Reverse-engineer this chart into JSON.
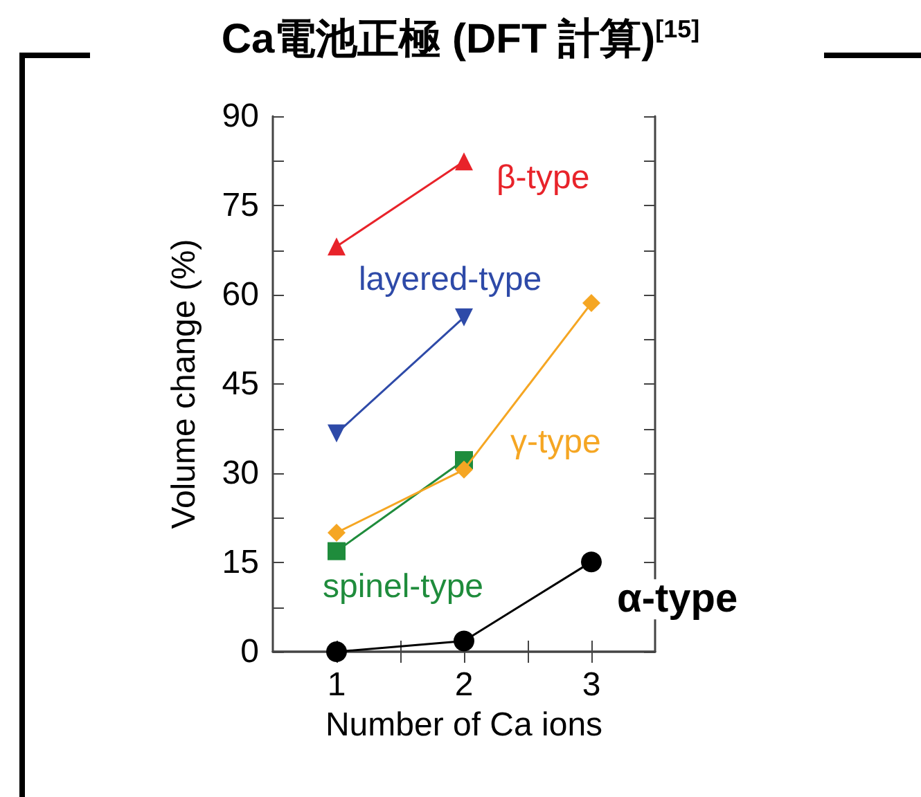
{
  "chart_data": {
    "type": "line",
    "title": "Ca電池正極 (DFT 計算)$^{[15]}$",
    "xlabel": "Number of Ca ions",
    "ylabel": "Volume change (%)",
    "xlim": [
      0.5,
      3.5
    ],
    "xticks": [
      1,
      {
        "value": 1.5,
        "label": null
      },
      2,
      {
        "value": 2.5,
        "label": null
      },
      3
    ],
    "ylim": [
      0,
      90
    ],
    "yticks": [
      0,
      {
        "value": 7.5,
        "label": null
      },
      15,
      {
        "value": 22.5,
        "label": null
      },
      30,
      {
        "value": 37.5,
        "label": null
      },
      45,
      {
        "value": 52.5,
        "label": null
      },
      60,
      {
        "value": 67.5,
        "label": null
      },
      75,
      {
        "value": 82.5,
        "label": null
      },
      90
    ],
    "legend": false,
    "grid": false,
    "series": [
      {
        "name": "β-type",
        "color": "#e8232a",
        "marker": "triangle",
        "x": [
          1,
          2
        ],
        "values": [
          68.1,
          82.4
        ]
      },
      {
        "name": "layered-type",
        "color": "#2e4aa8",
        "marker": "triangle-down",
        "x": [
          1,
          2
        ],
        "values": [
          36.7,
          56.2
        ]
      },
      {
        "name": "γ-type",
        "color": "#f5a623",
        "marker": "diamond",
        "x": [
          1,
          2,
          3
        ],
        "values": [
          20,
          30.6,
          58.6
        ]
      },
      {
        "name": "spinel-type",
        "color": "#1f8c3c",
        "marker": "square",
        "x": [
          1,
          2
        ],
        "values": [
          16.9,
          32.2
        ]
      },
      {
        "name": "α-type",
        "color": "#000000",
        "marker": "circle",
        "x": [
          1,
          2,
          3
        ],
        "values": [
          0,
          1.8,
          15.1
        ]
      }
    ]
  }
}
